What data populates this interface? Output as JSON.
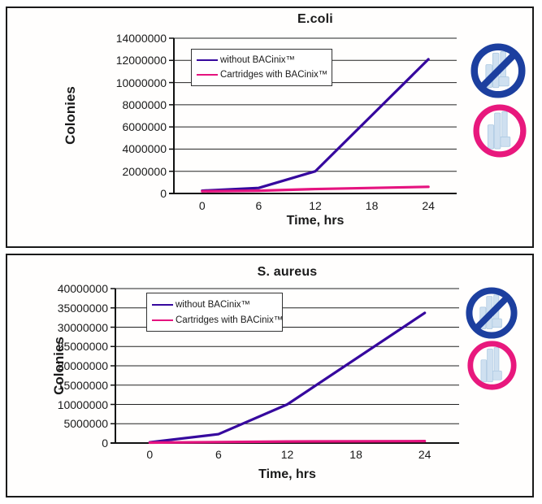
{
  "colors": {
    "line_without": "#36089e",
    "line_with": "#e5137f",
    "ring_no": "#1c3f9f",
    "ring_yes": "#e8187d",
    "cartridge_fill": "#cfe0f0",
    "cartridge_edge": "#a9c7e1",
    "grid": "#222222",
    "axis": "#111111",
    "panel_border": "#1a1a1a"
  },
  "icons": {
    "prohibited_cartridge": "no-cartridge-without-bacinix",
    "approved_cartridge": "cartridge-with-bacinix"
  },
  "chart_data": [
    {
      "type": "line",
      "title": "E.coli",
      "xlabel": "Time, hrs",
      "ylabel": "Colonies",
      "grid": true,
      "legend_position": "top-left-inside",
      "xticks": [
        0,
        6,
        12,
        18,
        24
      ],
      "yticks": [
        0,
        2000000,
        4000000,
        6000000,
        8000000,
        10000000,
        12000000,
        14000000
      ],
      "ylim": [
        0,
        14000000
      ],
      "xlim_categories": 5,
      "series": [
        {
          "name": "without BACinix™",
          "color": "#36089e",
          "x": [
            0,
            6,
            12,
            24
          ],
          "values": [
            250000,
            500000,
            2000000,
            12100000
          ]
        },
        {
          "name": "Cartridges with BACinix™",
          "color": "#e5137f",
          "x": [
            0,
            6,
            12,
            24
          ],
          "values": [
            200000,
            250000,
            400000,
            600000
          ]
        }
      ]
    },
    {
      "type": "line",
      "title": "S. aureus",
      "xlabel": "Time, hrs",
      "ylabel": "Colonies",
      "grid": true,
      "legend_position": "top-left-inside",
      "xticks": [
        0,
        6,
        12,
        18,
        24
      ],
      "yticks": [
        0,
        5000000,
        10000000,
        15000000,
        20000000,
        25000000,
        30000000,
        35000000,
        40000000
      ],
      "ylim": [
        0,
        40000000
      ],
      "xlim_categories": 5,
      "series": [
        {
          "name": "without BACinix™",
          "color": "#36089e",
          "x": [
            0,
            6,
            12,
            24
          ],
          "values": [
            200000,
            2300000,
            10000000,
            33700000
          ]
        },
        {
          "name": "Cartridges with BACinix™",
          "color": "#e5137f",
          "x": [
            0,
            6,
            12,
            24
          ],
          "values": [
            100000,
            250000,
            400000,
            500000
          ]
        }
      ]
    }
  ]
}
